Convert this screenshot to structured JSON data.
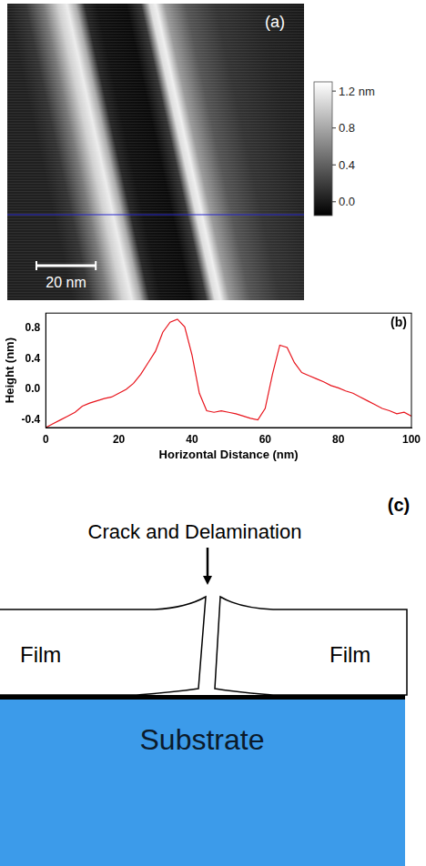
{
  "image_panel": {
    "label": "(a)",
    "size_nm": 100,
    "scale_bar": {
      "length": 20,
      "label": "20 nm"
    },
    "colorbar": {
      "range": [
        -0.15,
        1.3
      ],
      "ticks": [
        {
          "value": 1.2,
          "label": "1.2 nm"
        },
        0.8,
        0.4,
        {
          "value": 0,
          "label": "0.0"
        }
      ]
    }
  },
  "chart_data": {
    "type": "line",
    "annotation": "(b)",
    "x_label": "Horizontal Distance (nm)",
    "y_label": "Height (nm)",
    "color": "#e8141c",
    "grid": false,
    "x": [
      0,
      2,
      4,
      6,
      8,
      10,
      12,
      14,
      16,
      18,
      20,
      22,
      24,
      26,
      28,
      30,
      32,
      34,
      36,
      38,
      40,
      42,
      44,
      46,
      48,
      50,
      52,
      54,
      56,
      58,
      60,
      62,
      64,
      66,
      68,
      70,
      72,
      74,
      76,
      78,
      80,
      82,
      84,
      86,
      88,
      90,
      92,
      94,
      96,
      98,
      100
    ],
    "values": [
      -0.5,
      -0.45,
      -0.4,
      -0.35,
      -0.3,
      -0.22,
      -0.18,
      -0.15,
      -0.12,
      -0.1,
      -0.05,
      0.0,
      0.08,
      0.2,
      0.35,
      0.5,
      0.75,
      0.88,
      0.92,
      0.82,
      0.45,
      -0.05,
      -0.28,
      -0.3,
      -0.28,
      -0.3,
      -0.32,
      -0.35,
      -0.38,
      -0.4,
      -0.25,
      0.2,
      0.58,
      0.55,
      0.35,
      0.22,
      0.18,
      0.14,
      0.1,
      0.05,
      0.02,
      -0.02,
      -0.05,
      -0.1,
      -0.15,
      -0.2,
      -0.25,
      -0.28,
      -0.32,
      -0.3,
      -0.35
    ],
    "xlim": [
      0,
      100
    ],
    "xticks": [
      0,
      20,
      40,
      60,
      80,
      100
    ],
    "ylim": [
      -0.5,
      1.0
    ],
    "yticks": [
      -0.4,
      {
        "value": 0,
        "label": "0.0"
      },
      0.4,
      0.8
    ]
  },
  "diagram": {
    "label": "(c)",
    "annotation": "Crack and Delamination",
    "film_left": "Film",
    "film_right": "Film",
    "substrate": "Substrate"
  }
}
